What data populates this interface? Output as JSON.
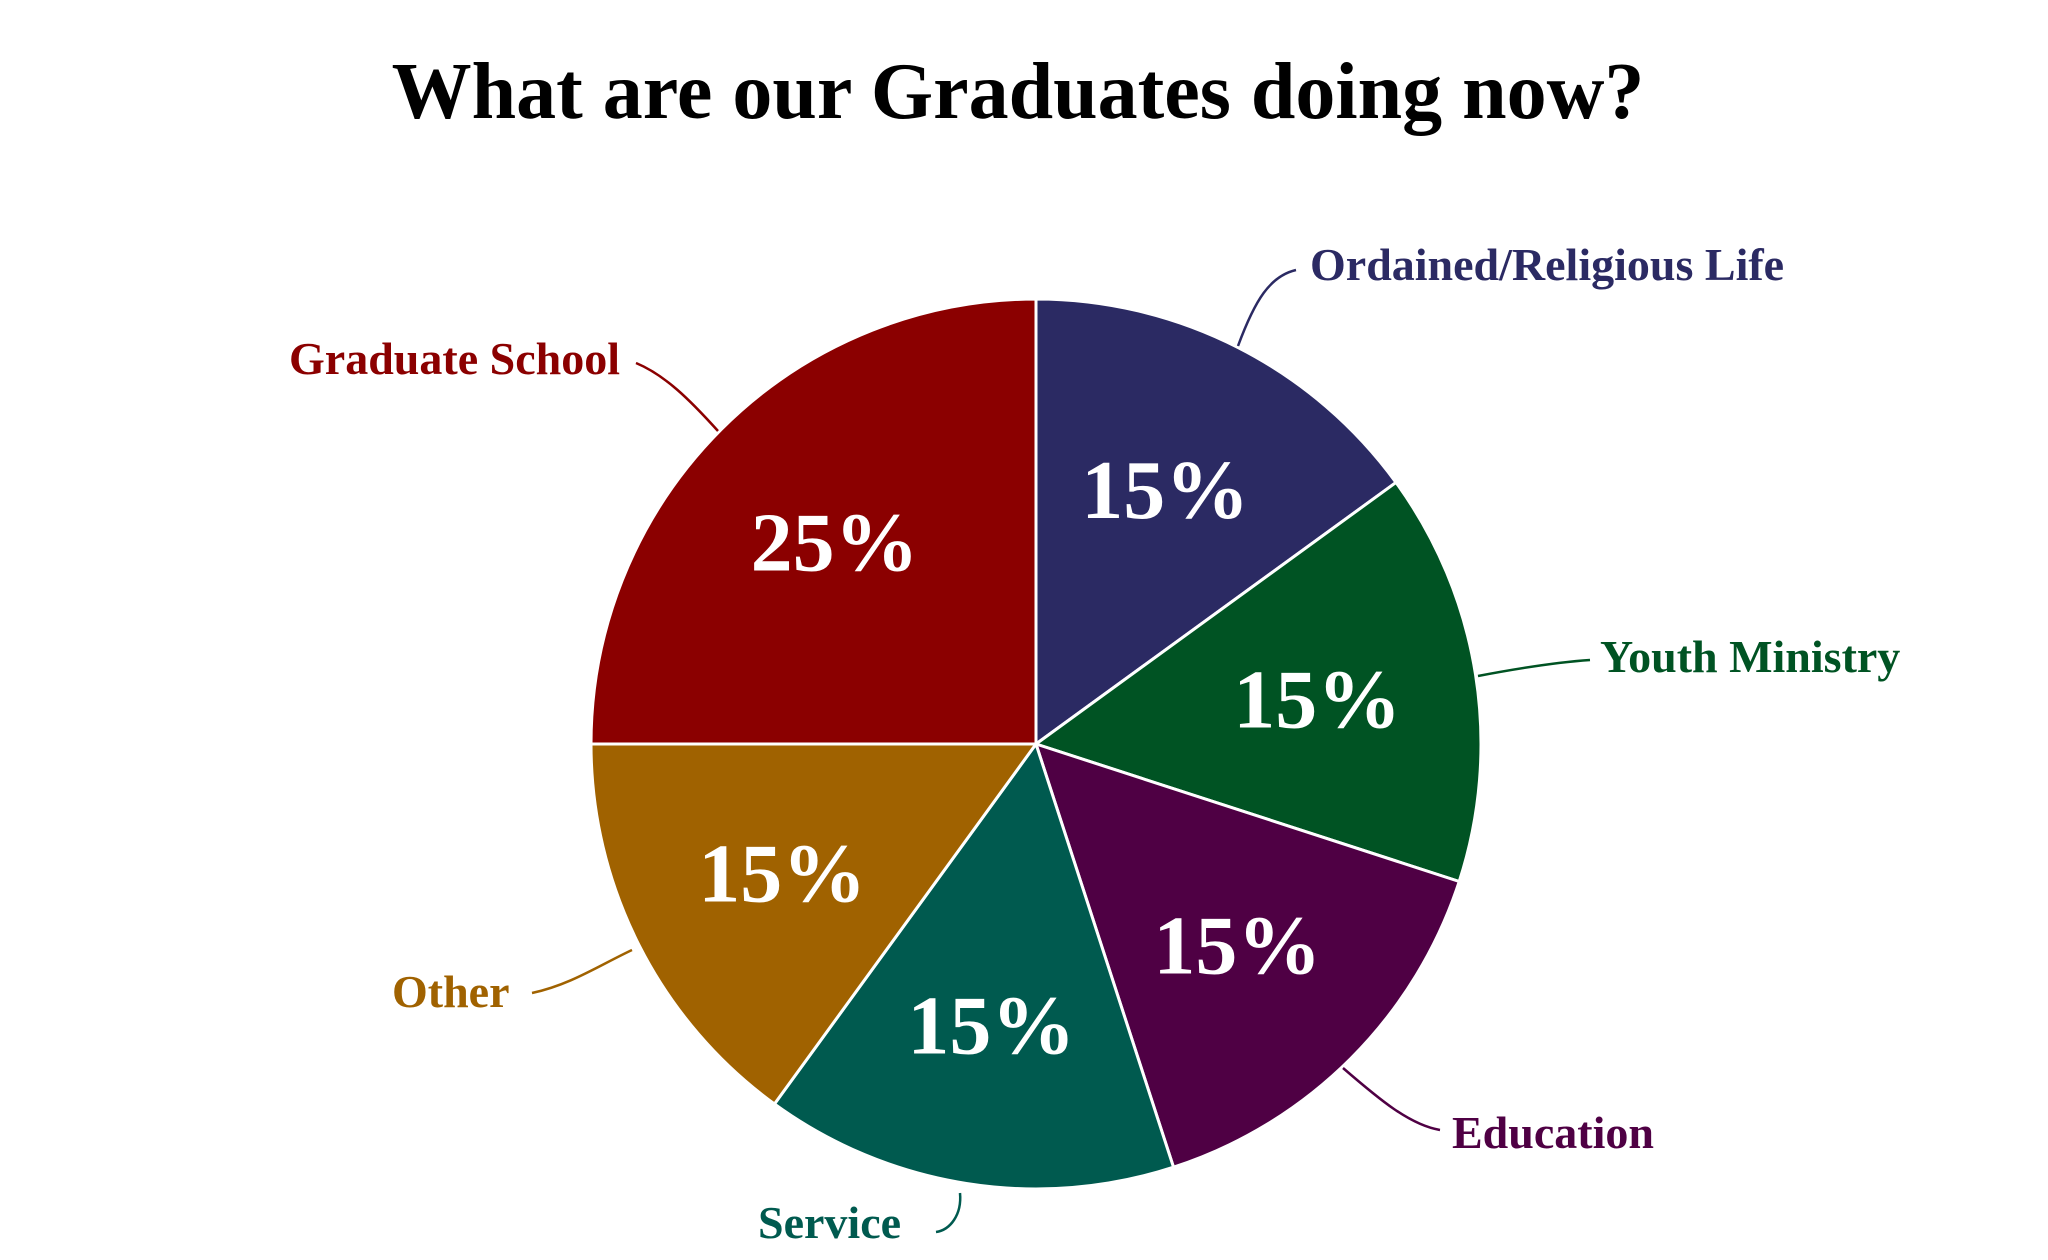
{
  "chart_data": {
    "type": "pie",
    "title": "What are our Graduates doing now?",
    "start_angle_deg": 0,
    "direction": "clockwise",
    "legend": "none (labels outside slices with leader lines)",
    "slices": [
      {
        "label": "Ordained/Religious Life",
        "value": 15,
        "display": "15%",
        "color": "#2b2a63"
      },
      {
        "label": "Youth Ministry",
        "value": 15,
        "display": "15%",
        "color": "#005323"
      },
      {
        "label": "Education",
        "value": 15,
        "display": "15%",
        "color": "#4f0044"
      },
      {
        "label": "Service",
        "value": 15,
        "display": "15%",
        "color": "#005a4f"
      },
      {
        "label": "Other",
        "value": 15,
        "display": "15%",
        "color": "#a06200"
      },
      {
        "label": "Graduate School",
        "value": 25,
        "display": "25%",
        "color": "#8b0000"
      }
    ],
    "slice_border_color": "#ffffff"
  }
}
